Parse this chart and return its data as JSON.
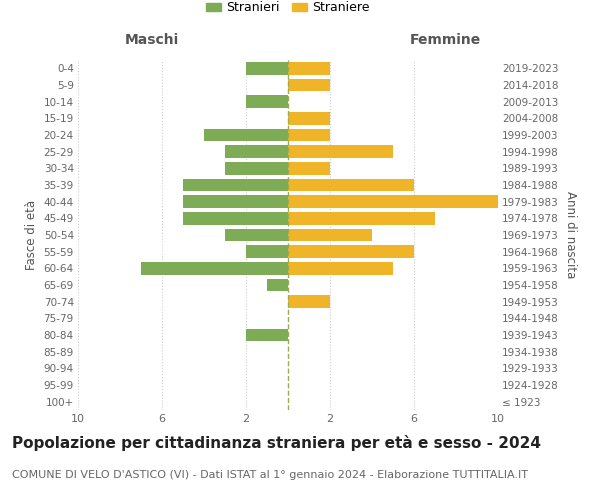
{
  "age_groups": [
    "100+",
    "95-99",
    "90-94",
    "85-89",
    "80-84",
    "75-79",
    "70-74",
    "65-69",
    "60-64",
    "55-59",
    "50-54",
    "45-49",
    "40-44",
    "35-39",
    "30-34",
    "25-29",
    "20-24",
    "15-19",
    "10-14",
    "5-9",
    "0-4"
  ],
  "birth_years": [
    "≤ 1923",
    "1924-1928",
    "1929-1933",
    "1934-1938",
    "1939-1943",
    "1944-1948",
    "1949-1953",
    "1954-1958",
    "1959-1963",
    "1964-1968",
    "1969-1973",
    "1974-1978",
    "1979-1983",
    "1984-1988",
    "1989-1993",
    "1994-1998",
    "1999-2003",
    "2004-2008",
    "2009-2013",
    "2014-2018",
    "2019-2023"
  ],
  "males": [
    0,
    0,
    0,
    0,
    2,
    0,
    0,
    1,
    7,
    2,
    3,
    5,
    5,
    5,
    3,
    3,
    4,
    0,
    2,
    0,
    2
  ],
  "females": [
    0,
    0,
    0,
    0,
    0,
    0,
    2,
    0,
    5,
    6,
    4,
    7,
    10,
    6,
    2,
    5,
    2,
    2,
    0,
    2,
    2
  ],
  "male_color": "#7dab56",
  "female_color": "#f0b429",
  "center_line_color": "#9aab50",
  "title": "Popolazione per cittadinanza straniera per età e sesso - 2024",
  "subtitle": "COMUNE DI VELO D'ASTICO (VI) - Dati ISTAT al 1° gennaio 2024 - Elaborazione TUTTITALIA.IT",
  "legend_stranieri": "Stranieri",
  "legend_straniere": "Straniere",
  "left_header": "Maschi",
  "right_header": "Femmine",
  "left_yaxis_label": "Fasce di età",
  "right_yaxis_label": "Anni di nascita",
  "background_color": "#ffffff",
  "grid_color": "#cccccc",
  "title_fontsize": 11,
  "subtitle_fontsize": 8,
  "bar_height": 0.75
}
